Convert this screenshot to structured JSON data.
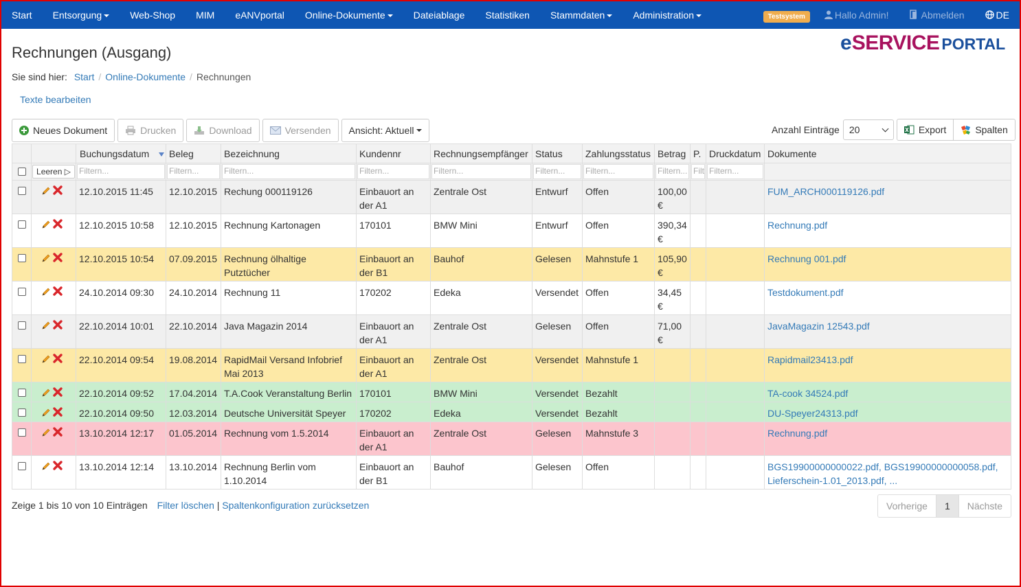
{
  "nav": {
    "items": [
      {
        "label": "Start",
        "dropdown": false
      },
      {
        "label": "Entsorgung",
        "dropdown": true
      },
      {
        "label": "Web-Shop",
        "dropdown": false
      },
      {
        "label": "MIM",
        "dropdown": false
      },
      {
        "label": "eANVportal",
        "dropdown": false
      },
      {
        "label": "Online-Dokumente",
        "dropdown": true
      },
      {
        "label": "Dateiablage",
        "dropdown": false
      },
      {
        "label": "Statistiken",
        "dropdown": false
      },
      {
        "label": "Stammdaten",
        "dropdown": true
      },
      {
        "label": "Administration",
        "dropdown": true
      }
    ],
    "test_badge": "Testsystem",
    "user": "Hallo Admin!",
    "logout": "Abmelden",
    "language": "DE"
  },
  "page": {
    "title": "Rechnungen (Ausgang)",
    "logo": {
      "e": "e",
      "service": "SERVICE",
      "portal": "PORTAL"
    }
  },
  "breadcrumb": {
    "prefix": "Sie sind hier:",
    "items": [
      "Start",
      "Online-Dokumente"
    ],
    "current": "Rechnungen"
  },
  "texte_bearbeiten": "Texte bearbeiten",
  "toolbar": {
    "new_doc": "Neues Dokument",
    "print": "Drucken",
    "download": "Download",
    "send": "Versenden",
    "view": "Ansicht: Aktuell"
  },
  "right_tools": {
    "entries_label": "Anzahl Einträge",
    "entries_value": "20",
    "export": "Export",
    "columns": "Spalten"
  },
  "table": {
    "headers": [
      "Buchungsdatum",
      "Beleg",
      "Bezeichnung",
      "Kundennr",
      "Rechnungsempfänger",
      "Status",
      "Zahlungsstatus",
      "Betrag",
      "P.",
      "Druckdatum",
      "Dokumente"
    ],
    "clear_label": "Leeren ▷",
    "filter_placeholder": "Filtern...",
    "filter_short": "Filt",
    "rows": [
      {
        "color": "grey",
        "buchung": "12.10.2015 11:45",
        "beleg": "12.10.2015",
        "bez": "Rechung 000119126",
        "kunde": "Einbauort an der A1",
        "empf": "Zentrale Ost",
        "status": "Entwurf",
        "zahl": "Offen",
        "betrag": "100,00 €",
        "p": "",
        "druck": "",
        "docs": "FUM_ARCH000119126.pdf"
      },
      {
        "color": "white",
        "buchung": "12.10.2015 10:58",
        "beleg": "12.10.2015",
        "bez": "Rechnung Kartonagen",
        "kunde": "170101",
        "empf": "BMW Mini",
        "status": "Entwurf",
        "zahl": "Offen",
        "betrag": "390,34 €",
        "p": "",
        "druck": "",
        "docs": "Rechnung.pdf"
      },
      {
        "color": "yellow",
        "buchung": "12.10.2015 10:54",
        "beleg": "07.09.2015",
        "bez": "Rechnung ölhaltige Putztücher",
        "kunde": "Einbauort an der B1",
        "empf": "Bauhof",
        "status": "Gelesen",
        "zahl": "Mahnstufe 1",
        "betrag": "105,90 €",
        "p": "",
        "druck": "",
        "docs": "Rechnung 001.pdf"
      },
      {
        "color": "white",
        "buchung": "24.10.2014 09:30",
        "beleg": "24.10.2014",
        "bez": "Rechnung 11",
        "kunde": "170202",
        "empf": "Edeka",
        "status": "Versendet",
        "zahl": "Offen",
        "betrag": "34,45 €",
        "p": "",
        "druck": "",
        "docs": "Testdokument.pdf"
      },
      {
        "color": "grey",
        "buchung": "22.10.2014 10:01",
        "beleg": "22.10.2014",
        "bez": "Java Magazin 2014",
        "kunde": "Einbauort an der A1",
        "empf": "Zentrale Ost",
        "status": "Gelesen",
        "zahl": "Offen",
        "betrag": "71,00 €",
        "p": "",
        "druck": "",
        "docs": "JavaMagazin 12543.pdf"
      },
      {
        "color": "yellow",
        "buchung": "22.10.2014 09:54",
        "beleg": "19.08.2014",
        "bez": "RapidMail Versand Infobrief Mai 2013",
        "kunde": "Einbauort an der A1",
        "empf": "Zentrale Ost",
        "status": "Versendet",
        "zahl": "Mahnstufe 1",
        "betrag": "",
        "p": "",
        "druck": "",
        "docs": "Rapidmail23413.pdf"
      },
      {
        "color": "green",
        "short": true,
        "buchung": "22.10.2014 09:52",
        "beleg": "17.04.2014",
        "bez": "T.A.Cook Veranstaltung Berlin",
        "kunde": "170101",
        "empf": "BMW Mini",
        "status": "Versendet",
        "zahl": "Bezahlt",
        "betrag": "",
        "p": "",
        "druck": "",
        "docs": "TA-cook 34524.pdf"
      },
      {
        "color": "green",
        "short": true,
        "buchung": "22.10.2014 09:50",
        "beleg": "12.03.2014",
        "bez": "Deutsche Universität Speyer",
        "kunde": "170202",
        "empf": "Edeka",
        "status": "Versendet",
        "zahl": "Bezahlt",
        "betrag": "",
        "p": "",
        "druck": "",
        "docs": "DU-Speyer24313.pdf"
      },
      {
        "color": "red",
        "buchung": "13.10.2014 12:17",
        "beleg": "01.05.2014",
        "bez": "Rechnung vom 1.5.2014",
        "kunde": "Einbauort an der A1",
        "empf": "Zentrale Ost",
        "status": "Gelesen",
        "zahl": "Mahnstufe 3",
        "betrag": "",
        "p": "",
        "druck": "",
        "docs": "Rechnung.pdf"
      },
      {
        "color": "white",
        "buchung": "13.10.2014 12:14",
        "beleg": "13.10.2014",
        "bez": "Rechnung Berlin vom 1.10.2014",
        "kunde": "Einbauort an der B1",
        "empf": "Bauhof",
        "status": "Gelesen",
        "zahl": "Offen",
        "betrag": "",
        "p": "",
        "druck": "",
        "docs": "BGS19900000000022.pdf, BGS19900000000058.pdf, Lieferschein-1.01_2013.pdf, ..."
      }
    ]
  },
  "footer": {
    "info": "Zeige 1 bis 10 von 10 Einträgen",
    "clear_filter": "Filter löschen",
    "separator": "|",
    "reset_columns": "Spaltenkonfiguration zurücksetzen",
    "prev": "Vorherige",
    "page": "1",
    "next": "Nächste"
  }
}
